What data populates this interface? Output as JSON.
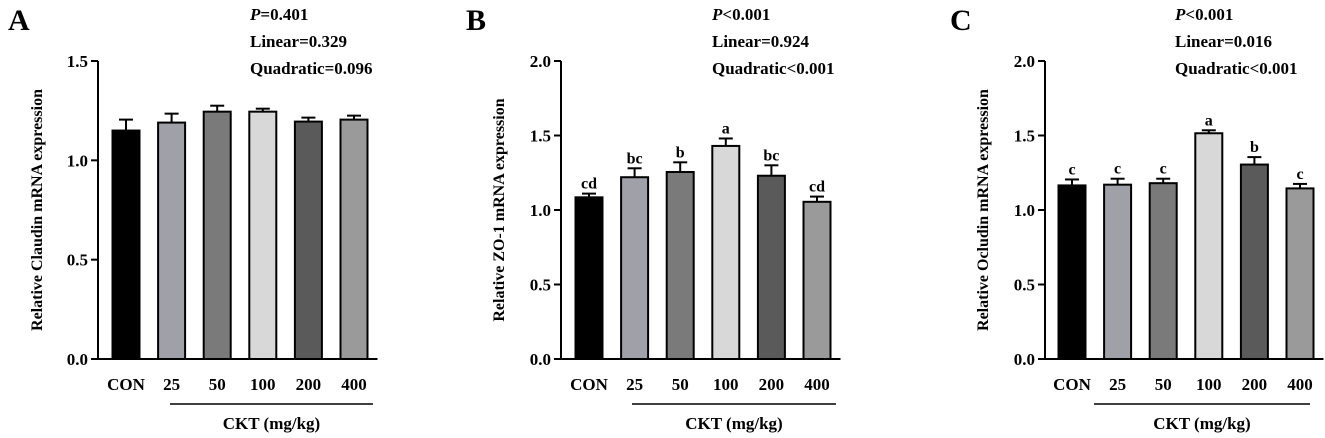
{
  "chart_data": [
    {
      "type": "bar",
      "panel_label": "A",
      "categories": [
        "CON",
        "25",
        "50",
        "100",
        "200",
        "400"
      ],
      "values": [
        1.15,
        1.19,
        1.245,
        1.245,
        1.195,
        1.205
      ],
      "errors": [
        0.055,
        0.045,
        0.03,
        0.015,
        0.02,
        0.02
      ],
      "colors": [
        "#000000",
        "#a0a0a8",
        "#7a7a7a",
        "#d8d8d8",
        "#5a5a5a",
        "#9a9a9a"
      ],
      "significance": [
        "",
        "",
        "",
        "",
        "",
        ""
      ],
      "ylabel": "Relative Claudin mRNA expression",
      "ylim": [
        0,
        1.5
      ],
      "yticks": [
        "0.0",
        "0.5",
        "1.0",
        "1.5"
      ],
      "group_label": "CKT (mg/kg)",
      "stats": {
        "p_prefix": "P",
        "p_rest": "=0.401",
        "linear": "Linear=0.329",
        "quadratic": "Quadratic=0.096"
      }
    },
    {
      "type": "bar",
      "panel_label": "B",
      "categories": [
        "CON",
        "25",
        "50",
        "100",
        "200",
        "400"
      ],
      "values": [
        1.085,
        1.22,
        1.255,
        1.43,
        1.23,
        1.055
      ],
      "errors": [
        0.025,
        0.06,
        0.065,
        0.05,
        0.07,
        0.035
      ],
      "colors": [
        "#000000",
        "#a0a0a8",
        "#7a7a7a",
        "#d8d8d8",
        "#5a5a5a",
        "#9a9a9a"
      ],
      "significance": [
        "cd",
        "bc",
        "b",
        "a",
        "bc",
        "cd"
      ],
      "ylabel": "Relative ZO-1 mRNA expression",
      "ylim": [
        0,
        2.0
      ],
      "yticks": [
        "0.0",
        "0.5",
        "1.0",
        "1.5",
        "2.0"
      ],
      "group_label": "CKT (mg/kg)",
      "stats": {
        "p_prefix": "P",
        "p_rest": "<0.001",
        "linear": "Linear=0.924",
        "quadratic": "Quadratic<0.001"
      }
    },
    {
      "type": "bar",
      "panel_label": "C",
      "categories": [
        "CON",
        "25",
        "50",
        "100",
        "200",
        "400"
      ],
      "values": [
        1.165,
        1.17,
        1.18,
        1.515,
        1.305,
        1.145
      ],
      "errors": [
        0.04,
        0.04,
        0.03,
        0.02,
        0.05,
        0.03
      ],
      "colors": [
        "#000000",
        "#a0a0a8",
        "#7a7a7a",
        "#d8d8d8",
        "#5a5a5a",
        "#9a9a9a"
      ],
      "significance": [
        "c",
        "c",
        "c",
        "a",
        "b",
        "c"
      ],
      "ylabel": "Relative Ocludin mRNA expression",
      "ylim": [
        0,
        2.0
      ],
      "yticks": [
        "0.0",
        "0.5",
        "1.0",
        "1.5",
        "2.0"
      ],
      "group_label": "CKT (mg/kg)",
      "stats": {
        "p_prefix": "P",
        "p_rest": "<0.001",
        "linear": "Linear=0.016",
        "quadratic": "Quadratic<0.001"
      }
    }
  ]
}
